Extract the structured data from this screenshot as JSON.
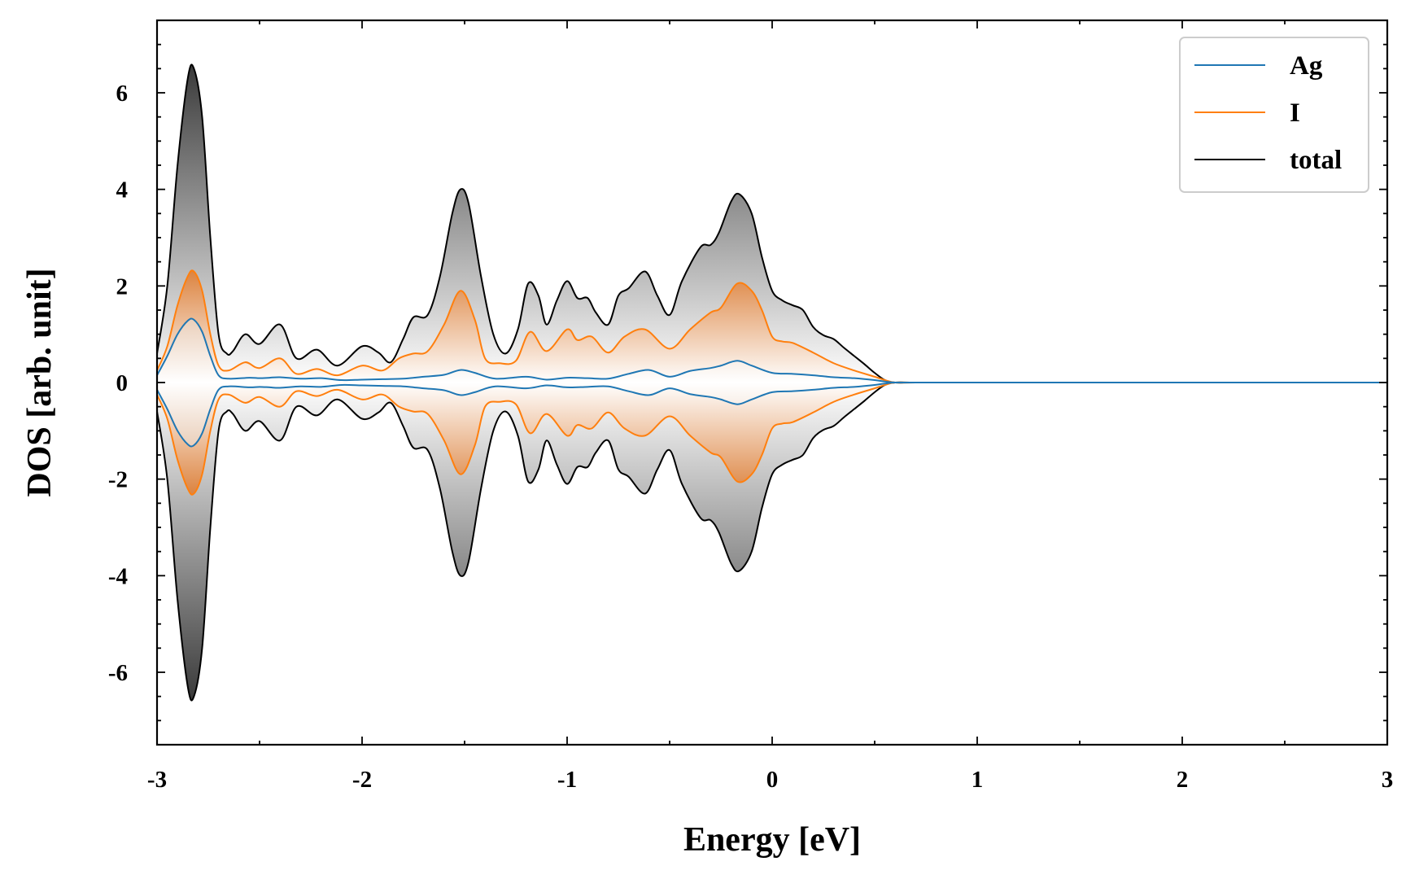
{
  "chart_data": {
    "type": "line",
    "xlabel": "Energy [eV]",
    "ylabel": "DOS [arb. unit]",
    "xlim": [
      -3,
      3
    ],
    "ylim": [
      -7.5,
      7.5
    ],
    "x_major_ticks": [
      -3,
      -2,
      -1,
      0,
      1,
      2,
      3
    ],
    "x_tick_labels": [
      "-3",
      "-2",
      "-1",
      "0",
      "1",
      "2",
      "3"
    ],
    "x_minor_step": 0.5,
    "y_major_ticks": [
      -6,
      -4,
      -2,
      0,
      2,
      4,
      6
    ],
    "y_tick_labels": [
      "-6",
      "-4",
      "-2",
      "0",
      "2",
      "4",
      "6"
    ],
    "y_minor_step": 0.5,
    "grid": false,
    "mirrored": true,
    "legend": {
      "placement": "top-right",
      "entries": [
        "Ag",
        "I",
        "total"
      ]
    },
    "series": [
      {
        "name": "Ag",
        "color": "#1f77b4",
        "x": [
          -3.0,
          -2.95,
          -2.9,
          -2.85,
          -2.82,
          -2.78,
          -2.74,
          -2.7,
          -2.65,
          -2.55,
          -2.5,
          -2.45,
          -2.4,
          -2.3,
          -2.2,
          -2.1,
          -2.0,
          -1.9,
          -1.8,
          -1.7,
          -1.6,
          -1.52,
          -1.45,
          -1.35,
          -1.2,
          -1.1,
          -1.0,
          -0.9,
          -0.8,
          -0.7,
          -0.6,
          -0.5,
          -0.4,
          -0.3,
          -0.25,
          -0.17,
          -0.1,
          0.0,
          0.1,
          0.2,
          0.3,
          0.4,
          0.5,
          0.55,
          0.6,
          0.7,
          1.0,
          2.0,
          3.0
        ],
        "y": [
          0.15,
          0.55,
          1.0,
          1.28,
          1.3,
          1.05,
          0.55,
          0.15,
          0.08,
          0.1,
          0.09,
          0.1,
          0.11,
          0.08,
          0.09,
          0.05,
          0.06,
          0.07,
          0.08,
          0.12,
          0.16,
          0.26,
          0.2,
          0.08,
          0.12,
          0.06,
          0.1,
          0.09,
          0.08,
          0.18,
          0.26,
          0.12,
          0.24,
          0.3,
          0.35,
          0.45,
          0.35,
          0.2,
          0.18,
          0.15,
          0.11,
          0.09,
          0.05,
          0.02,
          0.0,
          0.0,
          0.0,
          0.0,
          0.0
        ]
      },
      {
        "name": "I",
        "color": "#ff7f0e",
        "x": [
          -3.0,
          -2.95,
          -2.9,
          -2.85,
          -2.82,
          -2.78,
          -2.74,
          -2.7,
          -2.65,
          -2.57,
          -2.5,
          -2.4,
          -2.32,
          -2.22,
          -2.12,
          -2.0,
          -1.9,
          -1.82,
          -1.75,
          -1.68,
          -1.6,
          -1.52,
          -1.45,
          -1.4,
          -1.33,
          -1.25,
          -1.18,
          -1.1,
          -1.0,
          -0.95,
          -0.88,
          -0.8,
          -0.72,
          -0.62,
          -0.5,
          -0.4,
          -0.3,
          -0.25,
          -0.17,
          -0.1,
          -0.05,
          0.0,
          0.05,
          0.1,
          0.2,
          0.3,
          0.4,
          0.5,
          0.55,
          0.6,
          0.7,
          1.0,
          2.0,
          3.0
        ],
        "y": [
          0.25,
          0.75,
          1.6,
          2.2,
          2.3,
          1.9,
          1.0,
          0.35,
          0.25,
          0.42,
          0.3,
          0.5,
          0.18,
          0.28,
          0.15,
          0.35,
          0.25,
          0.5,
          0.6,
          0.65,
          1.2,
          1.9,
          1.3,
          0.5,
          0.4,
          0.45,
          1.05,
          0.65,
          1.1,
          0.88,
          0.95,
          0.62,
          0.95,
          1.1,
          0.7,
          1.1,
          1.45,
          1.55,
          2.05,
          1.9,
          1.5,
          0.95,
          0.85,
          0.82,
          0.62,
          0.4,
          0.25,
          0.12,
          0.05,
          0.0,
          0.0,
          0.0,
          0.0,
          0.0
        ]
      },
      {
        "name": "total",
        "color": "#000000",
        "x": [
          -3.0,
          -2.95,
          -2.9,
          -2.85,
          -2.82,
          -2.78,
          -2.74,
          -2.7,
          -2.66,
          -2.63,
          -2.57,
          -2.5,
          -2.4,
          -2.32,
          -2.22,
          -2.12,
          -2.0,
          -1.92,
          -1.86,
          -1.8,
          -1.75,
          -1.68,
          -1.62,
          -1.56,
          -1.52,
          -1.48,
          -1.42,
          -1.36,
          -1.3,
          -1.24,
          -1.19,
          -1.14,
          -1.1,
          -1.05,
          -1.0,
          -0.95,
          -0.9,
          -0.86,
          -0.8,
          -0.75,
          -0.7,
          -0.62,
          -0.56,
          -0.5,
          -0.44,
          -0.35,
          -0.3,
          -0.26,
          -0.2,
          -0.16,
          -0.1,
          -0.05,
          0.0,
          0.05,
          0.1,
          0.15,
          0.2,
          0.25,
          0.3,
          0.35,
          0.4,
          0.45,
          0.5,
          0.55,
          0.6,
          0.7,
          1.0,
          2.0,
          3.0
        ],
        "y": [
          0.6,
          2.0,
          4.5,
          6.3,
          6.5,
          5.5,
          3.0,
          1.0,
          0.6,
          0.65,
          1.0,
          0.8,
          1.2,
          0.5,
          0.68,
          0.35,
          0.75,
          0.62,
          0.42,
          0.9,
          1.35,
          1.4,
          2.2,
          3.5,
          4.0,
          3.7,
          2.2,
          1.0,
          0.6,
          1.1,
          2.05,
          1.8,
          1.2,
          1.7,
          2.1,
          1.75,
          1.75,
          1.45,
          1.2,
          1.8,
          1.95,
          2.3,
          1.8,
          1.4,
          2.1,
          2.8,
          2.85,
          3.1,
          3.75,
          3.9,
          3.5,
          2.6,
          1.9,
          1.7,
          1.6,
          1.5,
          1.15,
          0.98,
          0.9,
          0.72,
          0.55,
          0.38,
          0.2,
          0.05,
          0.0,
          0.0,
          0.0,
          0.0,
          0.0
        ]
      }
    ]
  }
}
